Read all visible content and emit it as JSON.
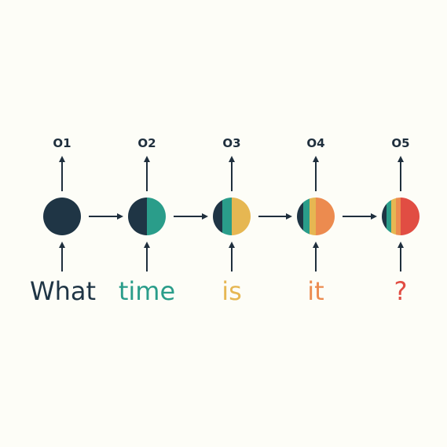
{
  "colors": {
    "background": "#fdfdf7",
    "arrow": "#1f2f3d",
    "output_text": "#1f2f3d"
  },
  "steps": [
    {
      "output": "O1",
      "word": "What",
      "color": "#1f3545",
      "bands": [
        "#1f3545"
      ]
    },
    {
      "output": "O2",
      "word": "time",
      "color": "#2a9d8a",
      "bands": [
        "#1f3545",
        "#2a9d8a"
      ]
    },
    {
      "output": "O3",
      "word": "is",
      "color": "#e6b752",
      "bands": [
        "#1f3545",
        "#2a9d8a",
        "#e6b752"
      ]
    },
    {
      "output": "O4",
      "word": "it",
      "color": "#ec8b4f",
      "bands": [
        "#1f3545",
        "#2a9d8a",
        "#e6b752",
        "#ec8b4f"
      ]
    },
    {
      "output": "O5",
      "word": "?",
      "color": "#e14d43",
      "bands": [
        "#1f3545",
        "#2a9d8a",
        "#e6b752",
        "#ec8b4f",
        "#e14d43"
      ]
    }
  ]
}
